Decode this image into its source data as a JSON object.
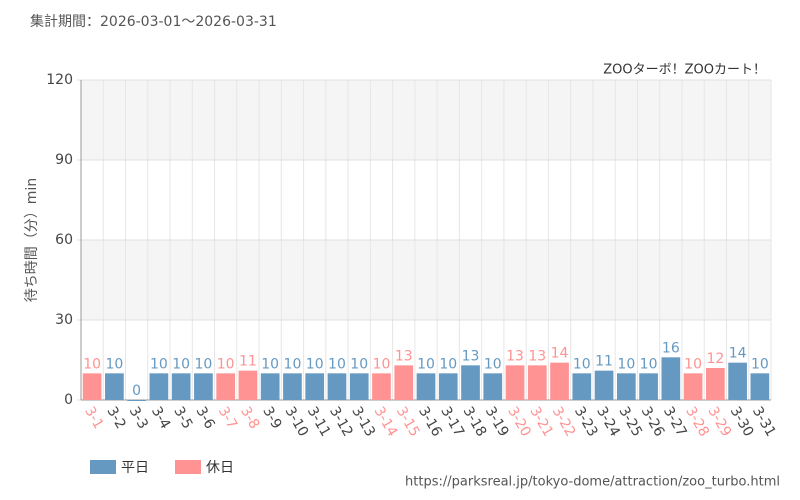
{
  "chart_data": {
    "type": "bar",
    "title": "集計期間：2026-03-01～2026-03-31",
    "subtitle": "ZOOターボ！ZOOカート！",
    "y_label": "待ち時間（分）min",
    "source": "https://parksreal.jp/tokyo-dome/attraction/zoo_turbo.html",
    "categories": [
      "3-1",
      "3-2",
      "3-3",
      "3-4",
      "3-5",
      "3-6",
      "3-7",
      "3-8",
      "3-9",
      "3-10",
      "3-11",
      "3-12",
      "3-13",
      "3-14",
      "3-15",
      "3-16",
      "3-17",
      "3-18",
      "3-19",
      "3-20",
      "3-21",
      "3-22",
      "3-23",
      "3-24",
      "3-25",
      "3-26",
      "3-27",
      "3-28",
      "3-29",
      "3-30",
      "3-31"
    ],
    "series": [
      {
        "name": "平日",
        "color": "#6699c2",
        "values": [
          null,
          10,
          0,
          10,
          10,
          10,
          null,
          null,
          10,
          10,
          10,
          10,
          10,
          null,
          null,
          10,
          10,
          13,
          10,
          null,
          null,
          null,
          10,
          11,
          10,
          10,
          16,
          null,
          null,
          14,
          10
        ]
      },
      {
        "name": "休日",
        "color": "#ff9393",
        "values": [
          10,
          null,
          null,
          null,
          null,
          null,
          10,
          11,
          null,
          null,
          null,
          null,
          null,
          10,
          13,
          null,
          null,
          null,
          null,
          13,
          13,
          14,
          null,
          null,
          null,
          null,
          null,
          10,
          12,
          null,
          null
        ]
      }
    ],
    "ylim": [
      0,
      120
    ],
    "yticks": [
      0,
      30,
      60,
      90,
      120
    ],
    "grid": true
  }
}
